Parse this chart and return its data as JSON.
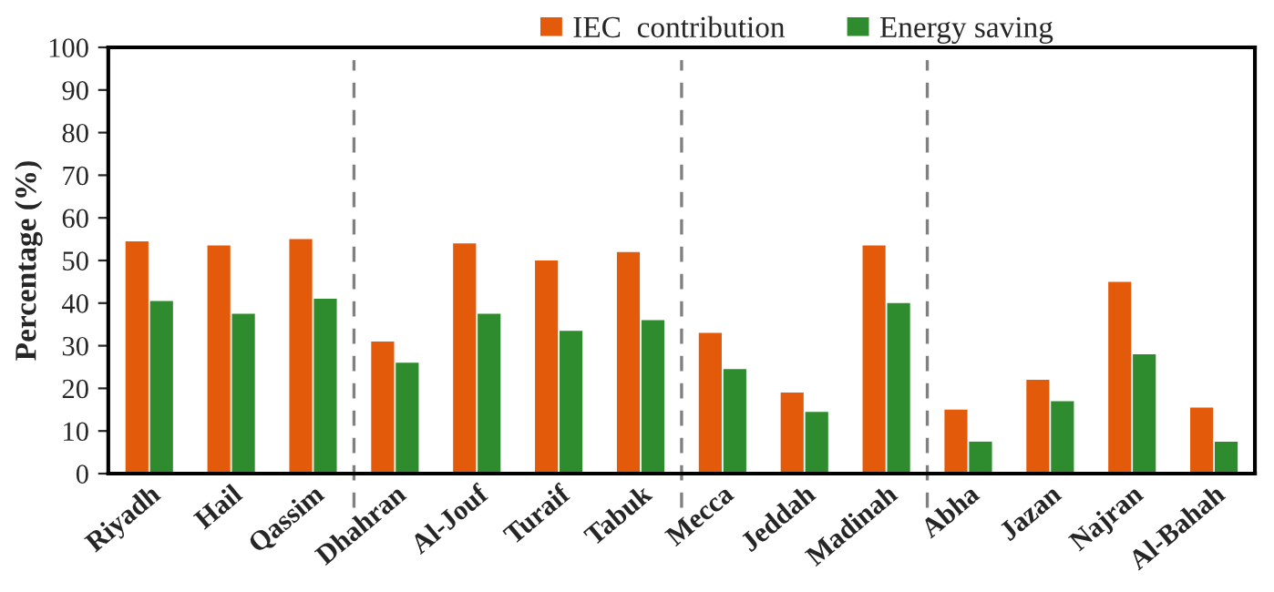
{
  "chart_data": {
    "type": "bar",
    "ylabel": "Percentage (%)",
    "categories": [
      "Riyadh",
      "Hail",
      "Qassim",
      "Dhahran",
      "Al-Jouf",
      "Turaif",
      "Tabuk",
      "Mecca",
      "Jeddah",
      "Madinah",
      "Abha",
      "Jazan",
      "Najran",
      "Al-Bahah"
    ],
    "series": [
      {
        "name": "IEC  contribution",
        "color": "#e35a0a",
        "values": [
          54.5,
          53.5,
          55,
          31,
          54,
          50,
          52,
          33,
          19,
          53.5,
          15,
          22,
          45,
          15.5
        ]
      },
      {
        "name": "Energy saving",
        "color": "#2e8b2e",
        "values": [
          40.5,
          37.5,
          41,
          26,
          37.5,
          33.5,
          36,
          24.5,
          14.5,
          40,
          7.5,
          17,
          28,
          7.5
        ]
      }
    ],
    "ylim": [
      0,
      100
    ],
    "yticks": [
      0,
      10,
      20,
      30,
      40,
      50,
      60,
      70,
      80,
      90,
      100
    ],
    "grid": false,
    "legend": "top"
  }
}
